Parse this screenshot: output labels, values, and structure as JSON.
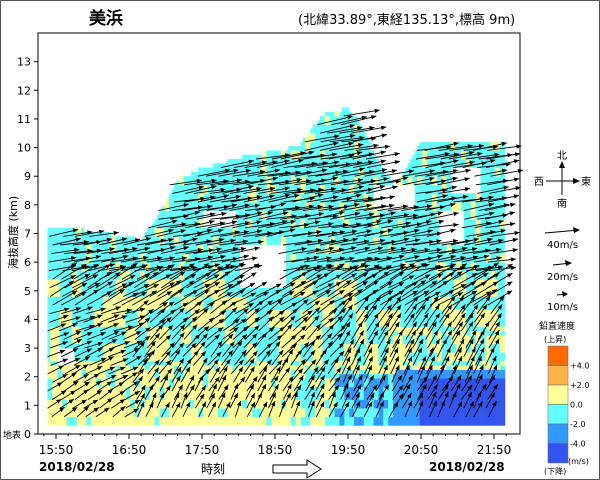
{
  "station": {
    "name": "美浜",
    "info": "(北緯33.89°,東経135.13°,標高  9m)"
  },
  "labels": {
    "ground": "地表",
    "date_left": "2018/02/28",
    "date_right": "2018/02/28",
    "time_axis": "時刻"
  },
  "compass": {
    "north": "北",
    "south": "南",
    "east": "東",
    "west": "西"
  },
  "wind_legend": [
    "40m/s",
    "20m/s",
    "10m/s"
  ],
  "color_legend": {
    "title": "鉛直速度",
    "top_label": "(上昇)",
    "bottom_label": "(下降)",
    "unit": "(m/s)",
    "ticks": [
      "+4.0",
      "+2.0",
      "0.0",
      "-2.0",
      "-4.0"
    ],
    "colors": [
      "#ff6a00",
      "#ffb347",
      "#ffff99",
      "#66ffff",
      "#3399ff",
      "#3355ee"
    ]
  },
  "chart_data": {
    "type": "wind_profile",
    "title": "美浜",
    "ylabel": "海抜高度 (km)",
    "xlabel": "時刻",
    "ylim": [
      0,
      14
    ],
    "yticks": [
      0,
      1,
      2,
      3,
      4,
      5,
      6,
      7,
      8,
      9,
      10,
      11,
      12,
      13
    ],
    "x_tick_labels": [
      "15:50",
      "16:50",
      "17:50",
      "18:50",
      "19:50",
      "20:50",
      "21:50"
    ],
    "x_range": [
      "15:40",
      "22:00"
    ],
    "time_step_minutes": 10,
    "vertical_velocity_classes_m_s": [
      "> +4.0",
      "+2.0 to +4.0",
      "0.0 to +2.0",
      "-2.0 to 0.0",
      "-4.0 to -2.0",
      "< -4.0"
    ],
    "observation_coverage": {
      "15:50": [
        0.3,
        7.2
      ],
      "16:50": [
        0.3,
        6.8
      ],
      "17:50": [
        0.3,
        9.2
      ],
      "18:50": [
        0.3,
        9.8
      ],
      "19:50": [
        0.3,
        11.3
      ],
      "20:50": [
        0.3,
        10.1
      ],
      "21:50": [
        0.3,
        10.1
      ]
    },
    "dominant_flow": "westerly (west-south-west) winds, about 20 m/s in the lowest 4 km, 30-40 m/s aloft",
    "descending_region": "below 2.2 km from about 19:50, -2.0 to -4.0 m/s, below -4.0 m/s after 20:50",
    "grid": false
  }
}
